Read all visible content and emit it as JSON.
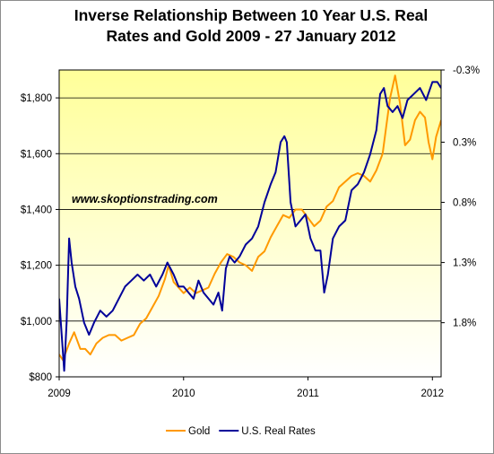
{
  "chart_data": {
    "type": "line",
    "title_line1": "Inverse Relationship Between 10 Year U.S. Real",
    "title_line2": "Rates and Gold  2009 - 27 January 2012",
    "annotation": "www.skoptionstrading.com",
    "x_ticks": [
      "2009",
      "2010",
      "2011",
      "2012"
    ],
    "x_range": [
      2009.0,
      2012.07
    ],
    "y_left": {
      "ticks": [
        "$800",
        "$1,000",
        "$1,200",
        "$1,400",
        "$1,600",
        "$1,800"
      ],
      "range": [
        800,
        1900
      ]
    },
    "y_right": {
      "ticks": [
        "-0.3%",
        "0.3%",
        "0.8%",
        "1.3%",
        "1.8%"
      ],
      "range_top": -0.3,
      "range_bottom": 2.25,
      "inverted": true
    },
    "legend_position": "bottom",
    "colors": {
      "gold": "#ff9900",
      "rates": "#000099",
      "plot_top": "#ffff99",
      "plot_bottom": "#ffffff"
    },
    "series": [
      {
        "name": "Gold",
        "axis": "left",
        "color": "#ff9900",
        "x": [
          2009.0,
          2009.03,
          2009.08,
          2009.12,
          2009.17,
          2009.21,
          2009.25,
          2009.3,
          2009.35,
          2009.4,
          2009.45,
          2009.5,
          2009.55,
          2009.6,
          2009.65,
          2009.7,
          2009.75,
          2009.8,
          2009.85,
          2009.88,
          2009.92,
          2009.96,
          2010.0,
          2010.05,
          2010.1,
          2010.15,
          2010.2,
          2010.25,
          2010.3,
          2010.35,
          2010.4,
          2010.45,
          2010.5,
          2010.55,
          2010.6,
          2010.65,
          2010.7,
          2010.75,
          2010.8,
          2010.85,
          2010.9,
          2010.95,
          2011.0,
          2011.05,
          2011.1,
          2011.15,
          2011.2,
          2011.25,
          2011.3,
          2011.35,
          2011.4,
          2011.45,
          2011.5,
          2011.55,
          2011.6,
          2011.63,
          2011.66,
          2011.7,
          2011.74,
          2011.78,
          2011.82,
          2011.86,
          2011.9,
          2011.94,
          2011.97,
          2012.0,
          2012.03,
          2012.07
        ],
        "values": [
          880,
          860,
          920,
          960,
          900,
          900,
          880,
          920,
          940,
          950,
          950,
          930,
          940,
          950,
          990,
          1010,
          1050,
          1090,
          1150,
          1200,
          1140,
          1120,
          1100,
          1120,
          1100,
          1110,
          1120,
          1170,
          1210,
          1240,
          1230,
          1210,
          1200,
          1180,
          1230,
          1250,
          1300,
          1340,
          1380,
          1370,
          1400,
          1400,
          1370,
          1340,
          1360,
          1410,
          1430,
          1480,
          1500,
          1520,
          1530,
          1520,
          1500,
          1540,
          1600,
          1700,
          1800,
          1880,
          1780,
          1630,
          1650,
          1720,
          1750,
          1730,
          1640,
          1580,
          1660,
          1720
        ]
      },
      {
        "name": "U.S. Real Rates",
        "axis": "right",
        "color": "#000099",
        "x": [
          2009.0,
          2009.02,
          2009.04,
          2009.06,
          2009.08,
          2009.1,
          2009.13,
          2009.16,
          2009.2,
          2009.24,
          2009.28,
          2009.33,
          2009.38,
          2009.43,
          2009.48,
          2009.53,
          2009.58,
          2009.63,
          2009.68,
          2009.73,
          2009.78,
          2009.83,
          2009.87,
          2009.92,
          2009.96,
          2010.0,
          2010.04,
          2010.08,
          2010.12,
          2010.16,
          2010.2,
          2010.24,
          2010.28,
          2010.31,
          2010.34,
          2010.37,
          2010.41,
          2010.45,
          2010.5,
          2010.55,
          2010.6,
          2010.65,
          2010.7,
          2010.74,
          2010.78,
          2010.81,
          2010.83,
          2010.86,
          2010.9,
          2010.94,
          2010.98,
          2011.02,
          2011.06,
          2011.1,
          2011.13,
          2011.16,
          2011.2,
          2011.25,
          2011.3,
          2011.35,
          2011.4,
          2011.45,
          2011.5,
          2011.55,
          2011.58,
          2011.61,
          2011.64,
          2011.68,
          2011.72,
          2011.76,
          2011.8,
          2011.85,
          2011.9,
          2011.95,
          2012.0,
          2012.04,
          2012.07
        ],
        "values": [
          1.6,
          1.9,
          2.2,
          1.8,
          1.1,
          1.3,
          1.5,
          1.6,
          1.8,
          1.9,
          1.8,
          1.7,
          1.75,
          1.7,
          1.6,
          1.5,
          1.45,
          1.4,
          1.45,
          1.4,
          1.5,
          1.4,
          1.3,
          1.4,
          1.5,
          1.5,
          1.55,
          1.6,
          1.45,
          1.55,
          1.6,
          1.65,
          1.55,
          1.7,
          1.35,
          1.25,
          1.3,
          1.25,
          1.15,
          1.1,
          1.0,
          0.8,
          0.65,
          0.55,
          0.3,
          0.25,
          0.3,
          0.8,
          1.0,
          0.95,
          0.9,
          1.1,
          1.2,
          1.2,
          1.55,
          1.4,
          1.1,
          1.0,
          0.95,
          0.7,
          0.65,
          0.55,
          0.4,
          0.2,
          -0.1,
          -0.15,
          0.0,
          0.05,
          0.0,
          0.1,
          -0.05,
          -0.1,
          -0.15,
          -0.05,
          -0.2,
          -0.2,
          -0.15
        ]
      }
    ]
  }
}
